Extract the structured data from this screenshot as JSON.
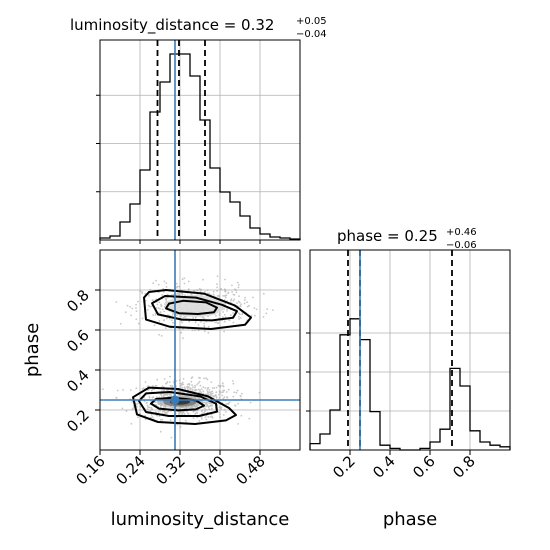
{
  "chart_data": {
    "type": "corner",
    "colors": {
      "truth": "#3b7bb5",
      "hist": "#000000",
      "grid": "#b0b0b0",
      "points": "#9a9a9a"
    },
    "parameters": [
      {
        "name": "luminosity_distance",
        "axis_label": "luminosity_distance",
        "range": [
          0.16,
          0.56
        ],
        "ticks": [
          "0.16",
          "0.24",
          "0.32",
          "0.40",
          "0.48"
        ],
        "median": 0.32,
        "title_main": "luminosity_distance = 0.32",
        "title_plus": "+0.05",
        "title_minus": "−0.04",
        "quantiles": [
          0.275,
          0.318,
          0.37
        ],
        "truth": 0.31
      },
      {
        "name": "phase",
        "axis_label": "phase",
        "range": [
          0.0,
          1.0
        ],
        "ticks": [
          "0.2",
          "0.4",
          "0.6",
          "0.8"
        ],
        "median": 0.25,
        "title_main": "phase = 0.25",
        "title_plus": "+0.46",
        "title_minus": "−0.06",
        "quantiles": [
          0.19,
          0.25,
          0.71
        ],
        "truth": 0.25
      }
    ],
    "hist_luminosity_distance": {
      "bin_edges": [
        0.16,
        0.18,
        0.2,
        0.22,
        0.24,
        0.26,
        0.28,
        0.3,
        0.32,
        0.34,
        0.36,
        0.38,
        0.4,
        0.42,
        0.44,
        0.46,
        0.48,
        0.5,
        0.52,
        0.54,
        0.56
      ],
      "counts": [
        0.01,
        0.02,
        0.09,
        0.18,
        0.35,
        0.64,
        0.79,
        0.93,
        0.93,
        0.82,
        0.6,
        0.36,
        0.24,
        0.19,
        0.12,
        0.06,
        0.03,
        0.015,
        0.01,
        0.005
      ]
    },
    "hist_phase": {
      "bin_edges": [
        0.0,
        0.05,
        0.1,
        0.15,
        0.2,
        0.25,
        0.3,
        0.35,
        0.4,
        0.45,
        0.5,
        0.55,
        0.6,
        0.65,
        0.7,
        0.75,
        0.8,
        0.85,
        0.9,
        0.95,
        1.0
      ],
      "counts": [
        0.04,
        0.1,
        0.25,
        0.72,
        0.82,
        0.69,
        0.24,
        0.03,
        0.01,
        0.0,
        0.0,
        0.01,
        0.05,
        0.13,
        0.51,
        0.4,
        0.12,
        0.05,
        0.03,
        0.02
      ]
    },
    "scatter_modes": [
      {
        "x": 0.33,
        "y": 0.25,
        "sx": 0.045,
        "sy": 0.055,
        "weight": 0.58
      },
      {
        "x": 0.35,
        "y": 0.72,
        "sx": 0.05,
        "sy": 0.06,
        "weight": 0.42
      }
    ],
    "contour_levels": [
      {
        "level": "inner",
        "polygons": [
          [
            [
              0.262,
              0.232
            ],
            [
              0.278,
              0.207
            ],
            [
              0.316,
              0.198
            ],
            [
              0.352,
              0.203
            ],
            [
              0.368,
              0.222
            ],
            [
              0.352,
              0.248
            ],
            [
              0.308,
              0.262
            ],
            [
              0.272,
              0.255
            ]
          ],
          [
            [
              0.292,
              0.708
            ],
            [
              0.318,
              0.684
            ],
            [
              0.356,
              0.68
            ],
            [
              0.388,
              0.689
            ],
            [
              0.394,
              0.712
            ],
            [
              0.372,
              0.738
            ],
            [
              0.326,
              0.746
            ],
            [
              0.298,
              0.732
            ]
          ]
        ]
      },
      {
        "level": "middle",
        "polygons": [
          [
            [
              0.238,
              0.245
            ],
            [
              0.252,
              0.19
            ],
            [
              0.298,
              0.17
            ],
            [
              0.358,
              0.17
            ],
            [
              0.394,
              0.192
            ],
            [
              0.392,
              0.232
            ],
            [
              0.36,
              0.268
            ],
            [
              0.3,
              0.29
            ],
            [
              0.252,
              0.283
            ]
          ],
          [
            [
              0.264,
              0.734
            ],
            [
              0.276,
              0.678
            ],
            [
              0.324,
              0.652
            ],
            [
              0.384,
              0.648
            ],
            [
              0.426,
              0.661
            ],
            [
              0.434,
              0.694
            ],
            [
              0.404,
              0.726
            ],
            [
              0.352,
              0.762
            ],
            [
              0.29,
              0.77
            ]
          ]
        ]
      },
      {
        "level": "outer",
        "polygons": [
          [
            [
              0.226,
              0.264
            ],
            [
              0.234,
              0.178
            ],
            [
              0.276,
              0.14
            ],
            [
              0.35,
              0.13
            ],
            [
              0.412,
              0.148
            ],
            [
              0.432,
              0.175
            ],
            [
              0.418,
              0.21
            ],
            [
              0.376,
              0.268
            ],
            [
              0.316,
              0.305
            ],
            [
              0.258,
              0.312
            ]
          ],
          [
            [
              0.248,
              0.762
            ],
            [
              0.252,
              0.652
            ],
            [
              0.3,
              0.616
            ],
            [
              0.382,
              0.605
            ],
            [
              0.45,
              0.626
            ],
            [
              0.462,
              0.662
            ],
            [
              0.43,
              0.722
            ],
            [
              0.368,
              0.782
            ],
            [
              0.292,
              0.8
            ],
            [
              0.258,
              0.79
            ]
          ]
        ]
      }
    ]
  }
}
